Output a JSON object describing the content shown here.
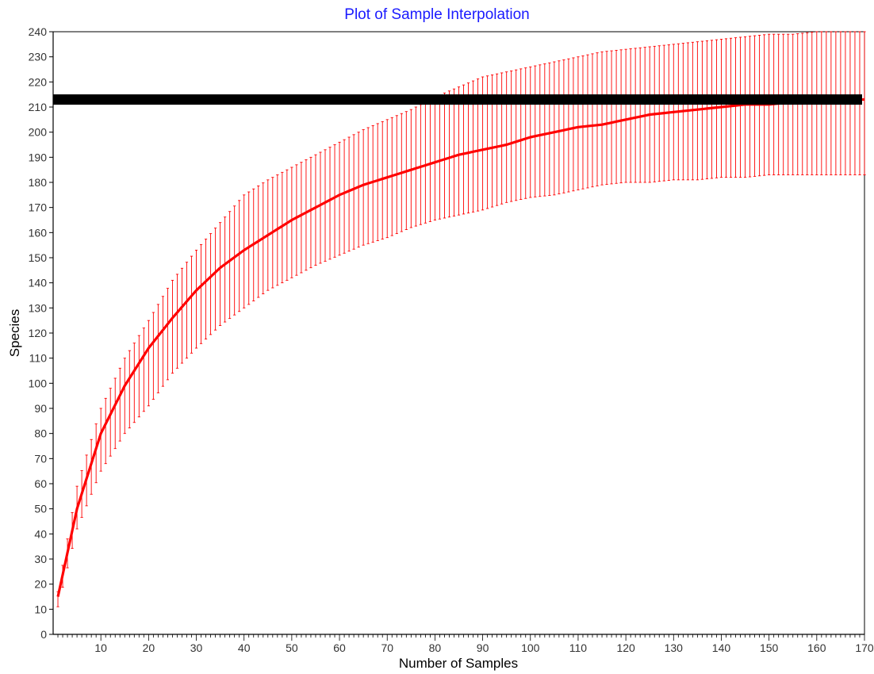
{
  "chart_data": {
    "type": "line",
    "title": "Plot of Sample Interpolation",
    "xlabel": "Number of Samples",
    "ylabel": "Species",
    "xlim": [
      0,
      170
    ],
    "ylim": [
      0,
      240
    ],
    "x_ticks": [
      10,
      20,
      30,
      40,
      50,
      60,
      70,
      80,
      90,
      100,
      110,
      120,
      130,
      140,
      150,
      160,
      170
    ],
    "y_ticks": [
      0,
      10,
      20,
      30,
      40,
      50,
      60,
      70,
      80,
      90,
      100,
      110,
      120,
      130,
      140,
      150,
      160,
      170,
      180,
      190,
      200,
      210,
      220,
      230,
      240
    ],
    "grid": false,
    "legend": "none",
    "colors": {
      "title": "#1a1aff",
      "series": "#ff0000",
      "reference": "#000000",
      "text": "#000000"
    },
    "series": [
      {
        "curve": "mean with error bars (one bar per sample count)",
        "x": [
          1,
          5,
          10,
          15,
          20,
          25,
          30,
          35,
          40,
          45,
          50,
          55,
          60,
          65,
          70,
          75,
          80,
          85,
          90,
          95,
          100,
          105,
          110,
          115,
          120,
          125,
          130,
          135,
          140,
          145,
          150,
          155,
          160,
          165,
          170
        ],
        "y": [
          15,
          50,
          80,
          99,
          114,
          126,
          137,
          146,
          153,
          159,
          165,
          170,
          175,
          179,
          182,
          185,
          188,
          191,
          193,
          195,
          198,
          200,
          202,
          203,
          205,
          207,
          208,
          209,
          210,
          211,
          211,
          212,
          212,
          213,
          213
        ],
        "upper": [
          17,
          59,
          90,
          110,
          125,
          141,
          153,
          164,
          175,
          181,
          186,
          191,
          196,
          201,
          205,
          209,
          214,
          218,
          222,
          224,
          226,
          228,
          230,
          232,
          233,
          234,
          235,
          236,
          237,
          238,
          239,
          239,
          240,
          240,
          240
        ],
        "lower": [
          11,
          42,
          65,
          80,
          91,
          104,
          114,
          123,
          130,
          137,
          142,
          147,
          151,
          155,
          158,
          162,
          165,
          167,
          169,
          172,
          174,
          175,
          177,
          179,
          180,
          180,
          181,
          181,
          182,
          182,
          183,
          183,
          183,
          183,
          183
        ]
      }
    ],
    "reference_line": {
      "y": 213
    }
  }
}
